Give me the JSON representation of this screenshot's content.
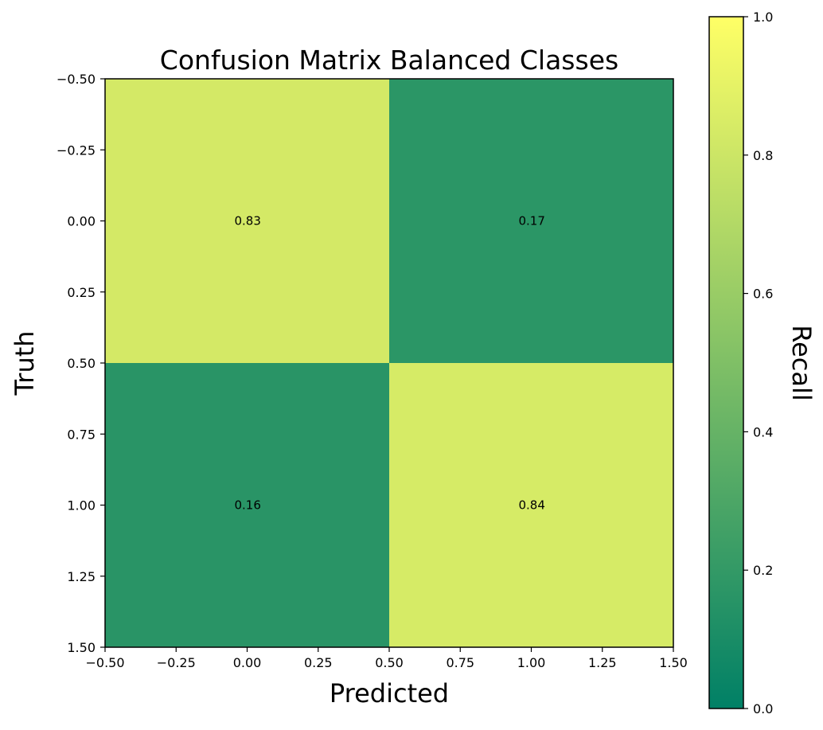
{
  "chart_data": {
    "type": "heatmap",
    "title": "Confusion Matrix Balanced Classes",
    "xlabel": "Predicted",
    "ylabel": "Truth",
    "colorbar_label": "Recall",
    "matrix": [
      [
        0.83,
        0.17
      ],
      [
        0.16,
        0.84
      ]
    ],
    "cell_labels": [
      [
        "0.83",
        "0.17"
      ],
      [
        "0.16",
        "0.84"
      ]
    ],
    "xlim": [
      -0.5,
      1.5
    ],
    "ylim": [
      1.5,
      -0.5
    ],
    "x_ticks": [
      "−0.50",
      "−0.25",
      "0.00",
      "0.25",
      "0.50",
      "0.75",
      "1.00",
      "1.25",
      "1.50"
    ],
    "y_ticks": [
      "−0.50",
      "−0.25",
      "0.00",
      "0.25",
      "0.50",
      "0.75",
      "1.00",
      "1.25",
      "1.50"
    ],
    "colorbar_range": [
      0,
      1
    ],
    "colorbar_ticks": [
      "0.0",
      "0.2",
      "0.4",
      "0.6",
      "0.8",
      "1.0"
    ],
    "colormap": "summer",
    "colormap_colors": [
      "#008066",
      "#ffff66"
    ],
    "grid": false
  }
}
